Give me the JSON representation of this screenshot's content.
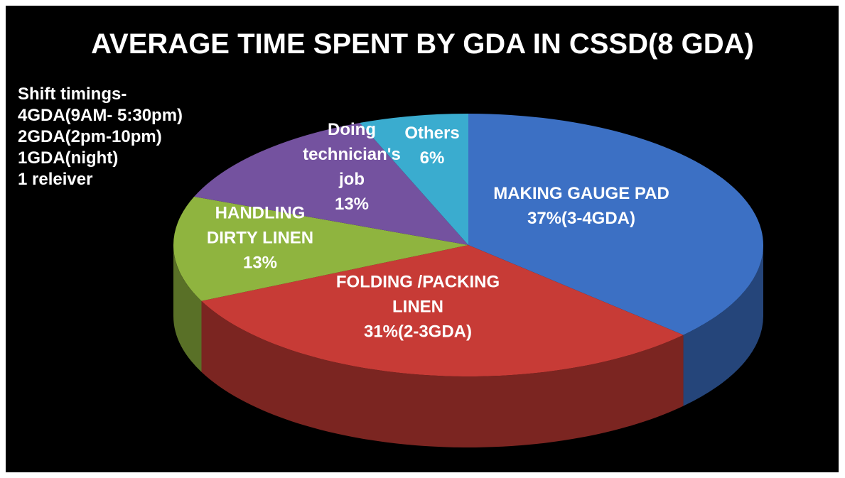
{
  "chart_data": {
    "type": "pie",
    "title": "AVERAGE TIME SPENT BY GDA IN CSSD(8 GDA)",
    "annotations": [
      "Shift timings-",
      "4GDA(9AM- 5:30pm)",
      "2GDA(2pm-10pm)",
      "1GDA(night)",
      "1 releiver"
    ],
    "categories": [
      "MAKING GAUGE PAD",
      "FOLDING /PACKING LINEN",
      "HANDLING DIRTY LINEN",
      "Doing technician's job",
      "Others"
    ],
    "values": [
      37,
      31,
      13,
      13,
      6
    ],
    "value_labels": [
      "37%(3-4GDA)",
      "31%(2-3GDA)",
      "13%",
      "13%",
      "6%"
    ],
    "colors": [
      "#3c70c4",
      "#c73b36",
      "#8fb43f",
      "#74529f",
      "#3aaccf"
    ]
  }
}
